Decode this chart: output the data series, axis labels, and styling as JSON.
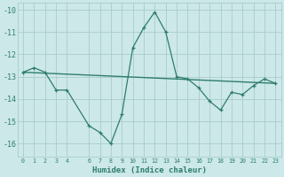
{
  "xlabel": "Humidex (Indice chaleur)",
  "bg_color": "#cce8e8",
  "grid_color": "#aacccc",
  "line_color": "#2e7d6e",
  "xlim": [
    -0.5,
    23.5
  ],
  "ylim": [
    -16.6,
    -9.7
  ],
  "yticks": [
    -16,
    -15,
    -14,
    -13,
    -12,
    -11,
    -10
  ],
  "xticks": [
    0,
    1,
    2,
    3,
    4,
    6,
    7,
    8,
    9,
    10,
    11,
    12,
    13,
    14,
    15,
    16,
    17,
    18,
    19,
    20,
    21,
    22,
    23
  ],
  "series1_x": [
    0,
    1,
    2,
    3,
    4,
    6,
    7,
    8,
    9,
    10,
    11,
    12,
    13,
    14,
    15,
    16,
    17,
    18,
    19,
    20,
    21,
    22,
    23
  ],
  "series1_y": [
    -12.8,
    -12.6,
    -12.8,
    -13.6,
    -13.6,
    -15.2,
    -15.5,
    -16.0,
    -14.7,
    -11.7,
    -10.8,
    -10.1,
    -11.0,
    -13.0,
    -13.1,
    -13.5,
    -14.1,
    -14.5,
    -13.7,
    -13.8,
    -13.4,
    -13.1,
    -13.3
  ],
  "series2_x": [
    0,
    23
  ],
  "series2_y": [
    -12.8,
    -13.3
  ],
  "xlabel_fontsize": 6.5,
  "ytick_fontsize": 6.0,
  "xtick_fontsize": 4.8
}
